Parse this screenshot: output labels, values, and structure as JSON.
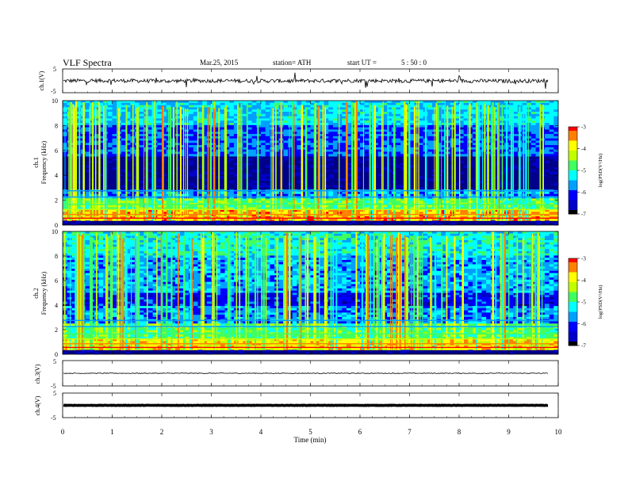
{
  "header": {
    "title": "VLF Spectra",
    "date": "Mar.25, 2015",
    "station": "station= ATH",
    "start_ut_label": "start  UT =",
    "start_ut_value": "5 : 50 : 0"
  },
  "colors": {
    "background": "#ffffff",
    "trace": "#000000",
    "colormap": [
      "#000000",
      "#0000c8",
      "#0000ff",
      "#00a0ff",
      "#00ffff",
      "#40ff60",
      "#c0ff00",
      "#ffff00",
      "#ff8000",
      "#ff0000",
      "#ffffff"
    ]
  },
  "chart_data": [
    {
      "type": "line",
      "panel": "ch1-waveform",
      "ylabel": "ch.1(V)",
      "ylim": [
        -5,
        5
      ],
      "ytick_labels": [
        "5",
        "-5"
      ],
      "x": [
        0,
        1,
        2,
        3,
        4,
        5,
        6,
        7,
        8,
        9,
        9.8
      ],
      "y": [
        0,
        0.1,
        -0.1,
        0.05,
        -0.05,
        0,
        0.1,
        -0.05,
        0,
        -0.1,
        0
      ]
    },
    {
      "type": "heatmap",
      "panel": "ch1-spectrogram",
      "ylabel_channel": "ch.1",
      "ylabel": "Frequency (kHz)",
      "ylim": [
        0,
        10
      ],
      "yticks": [
        0,
        2,
        4,
        6,
        8,
        10
      ],
      "colorbar_label": "log(PSD(V²/Hz)",
      "colorbar_range": [
        -7,
        -3
      ],
      "colorbar_ticks": [
        "-3",
        "-4",
        "-5",
        "-6",
        "-7"
      ]
    },
    {
      "type": "heatmap",
      "panel": "ch2-spectrogram",
      "ylabel_channel": "ch.2",
      "ylabel": "Frequency (kHz)",
      "ylim": [
        0,
        10
      ],
      "yticks": [
        0,
        2,
        4,
        6,
        8,
        10
      ],
      "colorbar_label": "log(PSD(V²/Hz)",
      "colorbar_range": [
        -7,
        -3
      ],
      "colorbar_ticks": [
        "-3",
        "-4",
        "-5",
        "-6",
        "-7"
      ]
    },
    {
      "type": "line",
      "panel": "ch3-waveform",
      "ylabel": "ch.3(V)",
      "ylim": [
        -5,
        5
      ],
      "ytick_labels": [
        "5",
        "-5"
      ],
      "x": [
        0,
        9.8
      ],
      "y": [
        0,
        0
      ]
    },
    {
      "type": "line",
      "panel": "ch4-waveform",
      "ylabel": "ch.4(V)",
      "ylim": [
        -5,
        5
      ],
      "ytick_labels": [
        "5",
        "-5"
      ],
      "x": [
        0,
        9.8
      ],
      "y": [
        0,
        0
      ]
    }
  ],
  "x_axis": {
    "label": "Time (min)",
    "xlim": [
      0,
      10
    ],
    "ticks": [
      "0",
      "1",
      "2",
      "3",
      "4",
      "5",
      "6",
      "7",
      "8",
      "9",
      "10"
    ]
  }
}
